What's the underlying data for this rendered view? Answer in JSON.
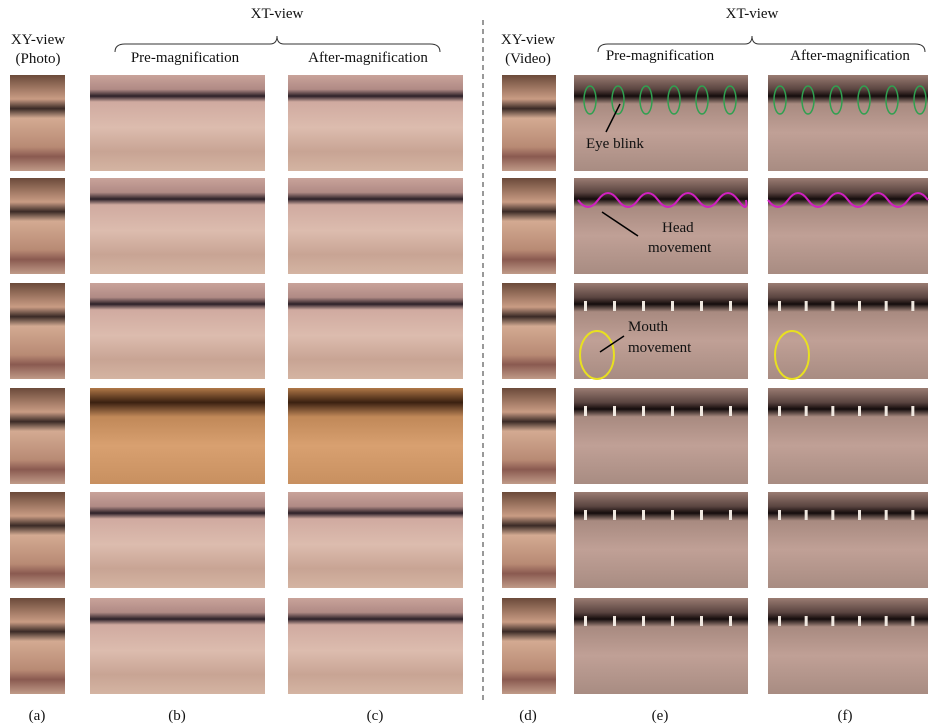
{
  "left": {
    "xy_label": [
      "XY-view",
      "(Photo)"
    ],
    "xt_label": "XT-view",
    "columns": [
      "Pre-magnification",
      "After-magnification"
    ]
  },
  "right": {
    "xy_label": [
      "XY-view",
      "(Video)"
    ],
    "xt_label": "XT-view",
    "columns": [
      "Pre-magnification",
      "After-magnification"
    ]
  },
  "annotations": {
    "eye_blink": "Eye blink",
    "head_movement": [
      "Head",
      "movement"
    ],
    "mouth_movement": [
      "Mouth",
      "movement"
    ]
  },
  "panel_labels": [
    "(a)",
    "(b)",
    "(c)",
    "(d)",
    "(e)",
    "(f)"
  ]
}
